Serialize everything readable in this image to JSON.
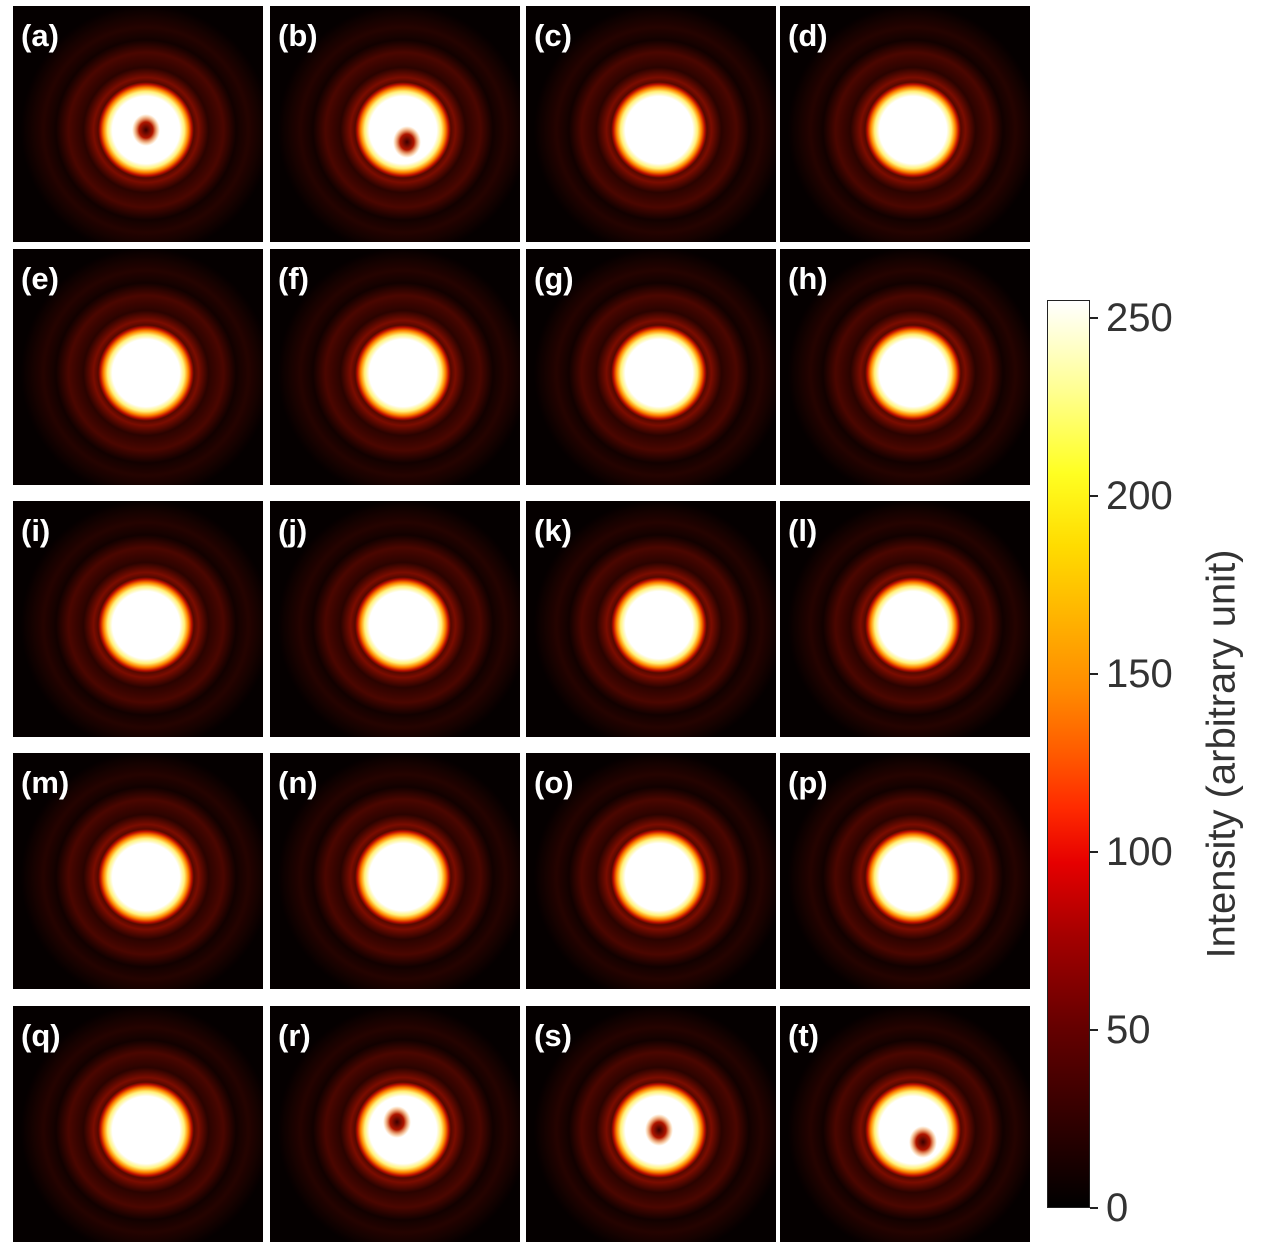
{
  "panels": [
    {
      "label": "(a)",
      "pattern": "donut-dark-core"
    },
    {
      "label": "(b)",
      "pattern": "donut-dark-core-shifted"
    },
    {
      "label": "(c)",
      "pattern": "filled-spot"
    },
    {
      "label": "(d)",
      "pattern": "filled-spot"
    },
    {
      "label": "(e)",
      "pattern": "filled-spot"
    },
    {
      "label": "(f)",
      "pattern": "filled-spot"
    },
    {
      "label": "(g)",
      "pattern": "filled-spot"
    },
    {
      "label": "(h)",
      "pattern": "filled-spot"
    },
    {
      "label": "(i)",
      "pattern": "filled-spot"
    },
    {
      "label": "(j)",
      "pattern": "filled-spot"
    },
    {
      "label": "(k)",
      "pattern": "filled-spot"
    },
    {
      "label": "(l)",
      "pattern": "filled-spot"
    },
    {
      "label": "(m)",
      "pattern": "filled-spot"
    },
    {
      "label": "(n)",
      "pattern": "filled-spot"
    },
    {
      "label": "(o)",
      "pattern": "filled-spot"
    },
    {
      "label": "(p)",
      "pattern": "filled-spot"
    },
    {
      "label": "(q)",
      "pattern": "filled-spot"
    },
    {
      "label": "(r)",
      "pattern": "donut-dark-core"
    },
    {
      "label": "(s)",
      "pattern": "donut-dark-core"
    },
    {
      "label": "(t)",
      "pattern": "donut-dark-core"
    }
  ],
  "colorbar": {
    "title": "Intensity (arbitrary unit)",
    "ticks": [
      "0",
      "50",
      "100",
      "150",
      "200",
      "250"
    ],
    "range": [
      0,
      255
    ],
    "colormap": "hot",
    "colors": [
      "#000000",
      "#ff0000",
      "#ffff00",
      "#ffffff"
    ]
  }
}
